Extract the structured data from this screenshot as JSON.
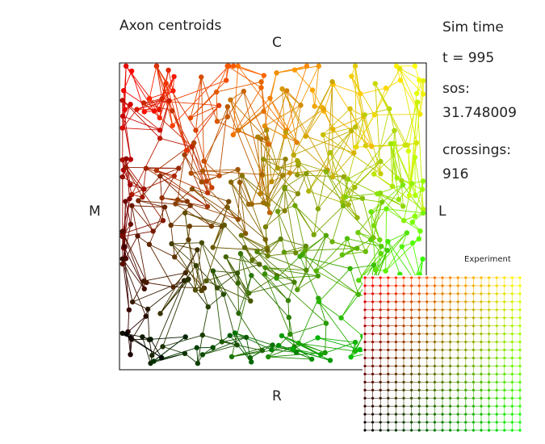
{
  "title": "Axon centroids",
  "edge_labels": {
    "top": "C",
    "bottom": "R",
    "left": "M",
    "right": "L"
  },
  "stats": {
    "sim_time_label": "Sim time",
    "t_label": "t =",
    "t_value": "995",
    "sos_label": "sos:",
    "sos_value": "31.748009",
    "crossings_label": "crossings:",
    "crossings_value": "916"
  },
  "inset": {
    "label": "Experiment",
    "grid_cols": 21,
    "grid_rows": 20
  },
  "colors": {
    "corner_top_left": "#ff0000",
    "corner_top_right": "#ffff00",
    "corner_bottom_left": "#000000",
    "corner_bottom_right": "#00ff00",
    "frame": "#000000"
  },
  "axon_sim": {
    "grid_cols": 21,
    "grid_rows": 20,
    "noise_seed": 7
  }
}
